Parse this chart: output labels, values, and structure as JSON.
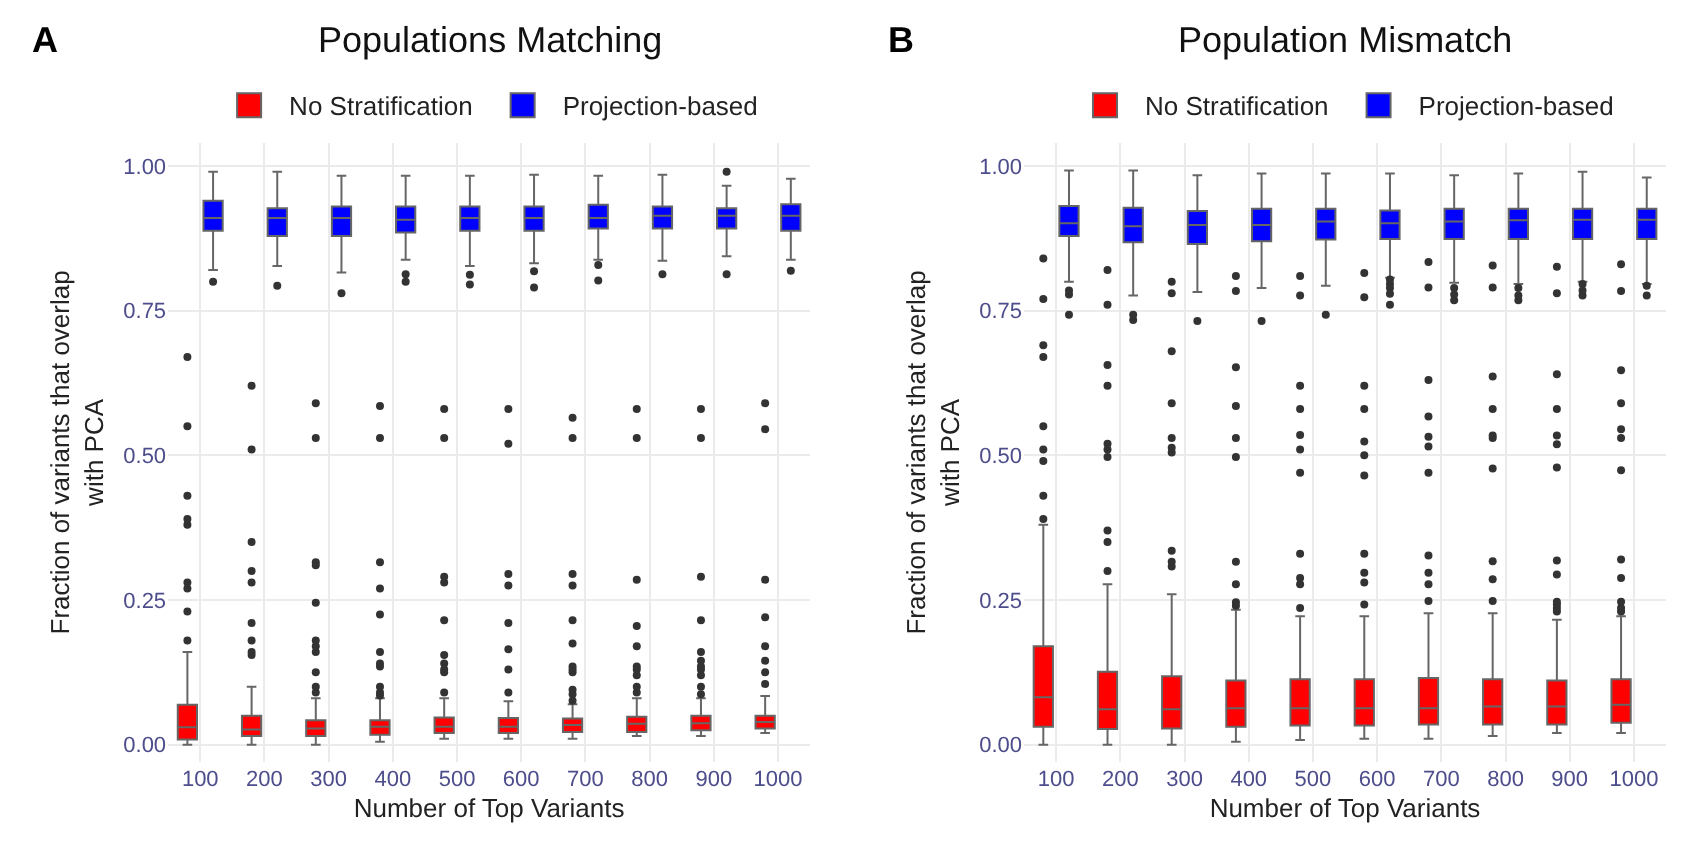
{
  "chart_data": [
    {
      "type": "box",
      "title": "Populations Matching",
      "xlabel": "Number of Top Variants",
      "ylabel": "Fraction of variants that overlap\nwith PCA",
      "annotations": [
        "A"
      ],
      "categories": [
        "100",
        "200",
        "300",
        "400",
        "500",
        "600",
        "700",
        "800",
        "900",
        "1000"
      ],
      "ylim": [
        -0.03,
        1.04
      ],
      "yticks": [
        {
          "value": 0,
          "label": "0.00"
        },
        {
          "value": 0.25,
          "label": "0.25"
        },
        {
          "value": 0.5,
          "label": "0.50"
        },
        {
          "value": 0.75,
          "label": "0.75"
        },
        {
          "value": 1,
          "label": "1.00"
        }
      ],
      "grid": true,
      "legend": "top",
      "series": [
        {
          "name": "No Stratification",
          "color": "#ff0000",
          "boxes": [
            {
              "low": 0,
              "q1": 0.009,
              "median": 0.03,
              "q3": 0.069,
              "high": 0.16,
              "outliers": [
                0.18,
                0.23,
                0.27,
                0.28,
                0.38,
                0.39,
                0.43,
                0.55,
                0.67
              ]
            },
            {
              "low": 0,
              "q1": 0.015,
              "median": 0.026,
              "q3": 0.05,
              "high": 0.1,
              "outliers": [
                0.155,
                0.16,
                0.18,
                0.21,
                0.28,
                0.3,
                0.35,
                0.51,
                0.62
              ]
            },
            {
              "low": 0,
              "q1": 0.015,
              "median": 0.028,
              "q3": 0.042,
              "high": 0.08,
              "outliers": [
                0.09,
                0.1,
                0.125,
                0.16,
                0.17,
                0.18,
                0.245,
                0.31,
                0.315,
                0.53,
                0.59
              ]
            },
            {
              "low": 0.005,
              "q1": 0.017,
              "median": 0.031,
              "q3": 0.042,
              "high": 0.08,
              "outliers": [
                0.085,
                0.09,
                0.1,
                0.135,
                0.14,
                0.16,
                0.225,
                0.27,
                0.315,
                0.53,
                0.585
              ]
            },
            {
              "low": 0.01,
              "q1": 0.02,
              "median": 0.031,
              "q3": 0.047,
              "high": 0.08,
              "outliers": [
                0.09,
                0.125,
                0.13,
                0.14,
                0.155,
                0.215,
                0.28,
                0.29,
                0.53,
                0.58
              ]
            },
            {
              "low": 0.01,
              "q1": 0.02,
              "median": 0.031,
              "q3": 0.046,
              "high": 0.075,
              "outliers": [
                0.09,
                0.13,
                0.165,
                0.21,
                0.275,
                0.295,
                0.52,
                0.58
              ]
            },
            {
              "low": 0.01,
              "q1": 0.022,
              "median": 0.034,
              "q3": 0.045,
              "high": 0.07,
              "outliers": [
                0.076,
                0.087,
                0.095,
                0.125,
                0.13,
                0.135,
                0.175,
                0.215,
                0.275,
                0.295,
                0.53,
                0.565
              ]
            },
            {
              "low": 0.015,
              "q1": 0.022,
              "median": 0.036,
              "q3": 0.048,
              "high": 0.08,
              "outliers": [
                0.09,
                0.1,
                0.12,
                0.13,
                0.135,
                0.17,
                0.205,
                0.285,
                0.53,
                0.58
              ]
            },
            {
              "low": 0.015,
              "q1": 0.025,
              "median": 0.037,
              "q3": 0.05,
              "high": 0.08,
              "outliers": [
                0.087,
                0.1,
                0.12,
                0.13,
                0.135,
                0.145,
                0.16,
                0.215,
                0.29,
                0.53,
                0.58
              ]
            },
            {
              "low": 0.02,
              "q1": 0.028,
              "median": 0.039,
              "q3": 0.05,
              "high": 0.084,
              "outliers": [
                0.105,
                0.125,
                0.145,
                0.17,
                0.22,
                0.285,
                0.545,
                0.59
              ]
            }
          ]
        },
        {
          "name": "Projection-based",
          "color": "#0000ff",
          "boxes": [
            {
              "low": 0.82,
              "q1": 0.888,
              "median": 0.91,
              "q3": 0.94,
              "high": 0.99,
              "outliers": [
                0.8
              ]
            },
            {
              "low": 0.827,
              "q1": 0.879,
              "median": 0.91,
              "q3": 0.927,
              "high": 0.99,
              "outliers": [
                0.793
              ]
            },
            {
              "low": 0.816,
              "q1": 0.879,
              "median": 0.91,
              "q3": 0.93,
              "high": 0.983,
              "outliers": [
                0.78
              ]
            },
            {
              "low": 0.838,
              "q1": 0.885,
              "median": 0.907,
              "q3": 0.93,
              "high": 0.983,
              "outliers": [
                0.8,
                0.813
              ]
            },
            {
              "low": 0.827,
              "q1": 0.888,
              "median": 0.91,
              "q3": 0.93,
              "high": 0.983,
              "outliers": [
                0.795,
                0.812
              ]
            },
            {
              "low": 0.832,
              "q1": 0.888,
              "median": 0.91,
              "q3": 0.93,
              "high": 0.985,
              "outliers": [
                0.79,
                0.818
              ]
            },
            {
              "low": 0.838,
              "q1": 0.892,
              "median": 0.91,
              "q3": 0.933,
              "high": 0.983,
              "outliers": [
                0.802,
                0.829
              ]
            },
            {
              "low": 0.836,
              "q1": 0.892,
              "median": 0.914,
              "q3": 0.93,
              "high": 0.985,
              "outliers": [
                0.813
              ]
            },
            {
              "low": 0.844,
              "q1": 0.892,
              "median": 0.914,
              "q3": 0.927,
              "high": 0.966,
              "outliers": [
                0.813,
                0.99
              ]
            },
            {
              "low": 0.838,
              "q1": 0.888,
              "median": 0.914,
              "q3": 0.934,
              "high": 0.978,
              "outliers": [
                0.819
              ]
            }
          ]
        }
      ]
    },
    {
      "type": "box",
      "title": "Population Mismatch",
      "xlabel": "Number of Top Variants",
      "ylabel": "Fraction of variants that overlap\nwith PCA",
      "annotations": [
        "B"
      ],
      "categories": [
        "100",
        "200",
        "300",
        "400",
        "500",
        "600",
        "700",
        "800",
        "900",
        "1000"
      ],
      "ylim": [
        -0.03,
        1.04
      ],
      "yticks": [
        {
          "value": 0,
          "label": "0.00"
        },
        {
          "value": 0.25,
          "label": "0.25"
        },
        {
          "value": 0.5,
          "label": "0.50"
        },
        {
          "value": 0.75,
          "label": "0.75"
        },
        {
          "value": 1,
          "label": "1.00"
        }
      ],
      "grid": true,
      "legend": "top",
      "series": [
        {
          "name": "No Stratification",
          "color": "#ff0000",
          "boxes": [
            {
              "low": 0,
              "q1": 0.031,
              "median": 0.082,
              "q3": 0.17,
              "high": 0.38,
              "outliers": [
                0.39,
                0.43,
                0.49,
                0.51,
                0.55,
                0.67,
                0.69,
                0.77,
                0.84
              ]
            },
            {
              "low": 0,
              "q1": 0.027,
              "median": 0.061,
              "q3": 0.126,
              "high": 0.277,
              "outliers": [
                0.3,
                0.35,
                0.37,
                0.497,
                0.51,
                0.52,
                0.62,
                0.656,
                0.76,
                0.82
              ]
            },
            {
              "low": 0,
              "q1": 0.028,
              "median": 0.061,
              "q3": 0.118,
              "high": 0.26,
              "outliers": [
                0.308,
                0.316,
                0.335,
                0.505,
                0.513,
                0.53,
                0.59,
                0.68,
                0.78,
                0.8
              ]
            },
            {
              "low": 0.005,
              "q1": 0.031,
              "median": 0.063,
              "q3": 0.111,
              "high": 0.233,
              "outliers": [
                0.24,
                0.246,
                0.277,
                0.316,
                0.497,
                0.53,
                0.585,
                0.652,
                0.784,
                0.81
              ]
            },
            {
              "low": 0.008,
              "q1": 0.033,
              "median": 0.063,
              "q3": 0.113,
              "high": 0.222,
              "outliers": [
                0.236,
                0.277,
                0.288,
                0.33,
                0.47,
                0.51,
                0.535,
                0.58,
                0.62,
                0.776,
                0.81
              ]
            },
            {
              "low": 0.01,
              "q1": 0.033,
              "median": 0.063,
              "q3": 0.113,
              "high": 0.222,
              "outliers": [
                0.242,
                0.28,
                0.297,
                0.33,
                0.465,
                0.5,
                0.524,
                0.58,
                0.62,
                0.773,
                0.815
              ]
            },
            {
              "low": 0.01,
              "q1": 0.035,
              "median": 0.063,
              "q3": 0.115,
              "high": 0.227,
              "outliers": [
                0.248,
                0.277,
                0.297,
                0.327,
                0.47,
                0.515,
                0.532,
                0.567,
                0.63,
                0.79,
                0.834
              ]
            },
            {
              "low": 0.015,
              "q1": 0.035,
              "median": 0.066,
              "q3": 0.113,
              "high": 0.227,
              "outliers": [
                0.248,
                0.286,
                0.317,
                0.477,
                0.53,
                0.534,
                0.58,
                0.636,
                0.79,
                0.828
              ]
            },
            {
              "low": 0.02,
              "q1": 0.035,
              "median": 0.066,
              "q3": 0.111,
              "high": 0.216,
              "outliers": [
                0.23,
                0.236,
                0.242,
                0.247,
                0.294,
                0.318,
                0.479,
                0.519,
                0.534,
                0.58,
                0.64,
                0.78,
                0.826
              ]
            },
            {
              "low": 0.02,
              "q1": 0.038,
              "median": 0.069,
              "q3": 0.113,
              "high": 0.222,
              "outliers": [
                0.23,
                0.236,
                0.247,
                0.288,
                0.32,
                0.474,
                0.53,
                0.545,
                0.59,
                0.647,
                0.784,
                0.83
              ]
            }
          ]
        },
        {
          "name": "Projection-based",
          "color": "#0000ff",
          "boxes": [
            {
              "low": 0.8,
              "q1": 0.879,
              "median": 0.901,
              "q3": 0.931,
              "high": 0.992,
              "outliers": [
                0.743,
                0.778,
                0.785
              ]
            },
            {
              "low": 0.776,
              "q1": 0.868,
              "median": 0.896,
              "q3": 0.928,
              "high": 0.992,
              "outliers": [
                0.734,
                0.743
              ]
            },
            {
              "low": 0.782,
              "q1": 0.865,
              "median": 0.898,
              "q3": 0.922,
              "high": 0.984,
              "outliers": [
                0.732
              ]
            },
            {
              "low": 0.789,
              "q1": 0.87,
              "median": 0.898,
              "q3": 0.926,
              "high": 0.987,
              "outliers": [
                0.732
              ]
            },
            {
              "low": 0.793,
              "q1": 0.873,
              "median": 0.904,
              "q3": 0.926,
              "high": 0.987,
              "outliers": [
                0.743
              ]
            },
            {
              "low": 0.807,
              "q1": 0.874,
              "median": 0.901,
              "q3": 0.923,
              "high": 0.987,
              "outliers": [
                0.76,
                0.779,
                0.789,
                0.796,
                0.804
              ]
            },
            {
              "low": 0.798,
              "q1": 0.874,
              "median": 0.904,
              "q3": 0.926,
              "high": 0.984,
              "outliers": [
                0.768,
                0.778,
                0.789
              ]
            },
            {
              "low": 0.796,
              "q1": 0.874,
              "median": 0.906,
              "q3": 0.926,
              "high": 0.987,
              "outliers": [
                0.768,
                0.776,
                0.789
              ]
            },
            {
              "low": 0.8,
              "q1": 0.874,
              "median": 0.907,
              "q3": 0.926,
              "high": 0.99,
              "outliers": [
                0.776,
                0.785,
                0.796
              ]
            },
            {
              "low": 0.796,
              "q1": 0.874,
              "median": 0.907,
              "q3": 0.926,
              "high": 0.98,
              "outliers": [
                0.776,
                0.793
              ]
            }
          ]
        }
      ]
    }
  ]
}
